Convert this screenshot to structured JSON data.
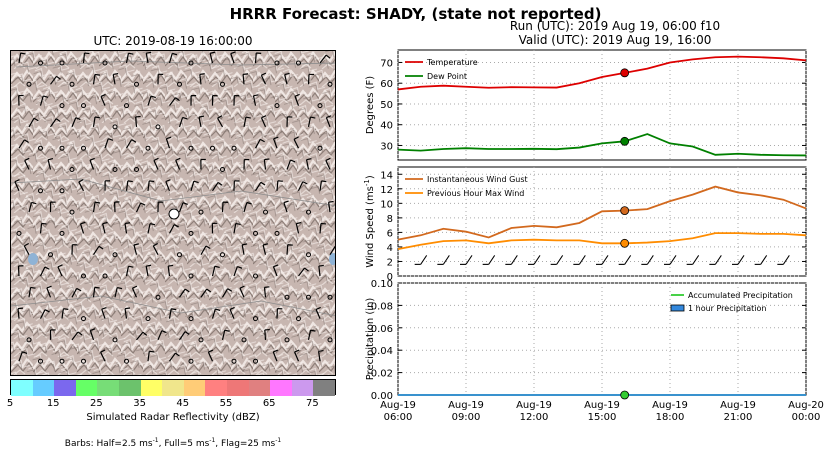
{
  "figure": {
    "suptitle": "HRRR Forecast: SHADY, (state not reported)",
    "run_line": "Run (UTC): 2019 Aug 19, 06:00 f10",
    "valid_line": "Valid (UTC): 2019 Aug 19, 16:00",
    "map_title": "UTC: 2019-08-19 16:00:00",
    "colorbar_label": "Simulated Radar Reflectivity (dBZ)",
    "colorbar_ticks": [
      "5",
      "15",
      "25",
      "35",
      "45",
      "55",
      "65",
      "75"
    ],
    "colorbar_colors": [
      "#7fffff",
      "#66ccff",
      "#7b68ee",
      "#66ff66",
      "#77dd77",
      "#6cc26c",
      "#ffff66",
      "#f0e68c",
      "#ffcc77",
      "#ff8080",
      "#ee7777",
      "#e08080",
      "#ff77ff",
      "#cc99ee",
      "#808080"
    ],
    "barbs_note": "Barbs: Half=2.5 ms",
    "barbs_note_mid": ", Full=5 ms",
    "barbs_note_end": ", Flag=25 ms",
    "barbs_sup": "-1"
  },
  "x_ticks": [
    {
      "l1": "Aug-19",
      "l2": "06:00",
      "h": 0
    },
    {
      "l1": "Aug-19",
      "l2": "09:00",
      "h": 3
    },
    {
      "l1": "Aug-19",
      "l2": "12:00",
      "h": 6
    },
    {
      "l1": "Aug-19",
      "l2": "15:00",
      "h": 9
    },
    {
      "l1": "Aug-19",
      "l2": "18:00",
      "h": 12
    },
    {
      "l1": "Aug-19",
      "l2": "21:00",
      "h": 15
    },
    {
      "l1": "Aug-20",
      "l2": "00:00",
      "h": 18
    }
  ],
  "chart_data": [
    {
      "type": "line",
      "ylabel": "Degrees (F)",
      "ylim": [
        23,
        76
      ],
      "yticks": [
        30,
        40,
        50,
        60,
        70
      ],
      "grid": true,
      "legend": "top-left",
      "series": [
        {
          "name": "Temperature",
          "color": "#dd0000",
          "x": [
            0,
            1,
            2,
            3,
            4,
            5,
            6,
            7,
            8,
            9,
            10,
            11,
            12,
            13,
            14,
            15,
            16,
            17,
            18
          ],
          "values": [
            57,
            58.3,
            58.8,
            58.3,
            57.8,
            58.1,
            58,
            57.9,
            60,
            63,
            65,
            67,
            70,
            71.5,
            72.5,
            72.8,
            72.5,
            72,
            71
          ]
        },
        {
          "name": "Dew Point",
          "color": "#008000",
          "x": [
            0,
            1,
            2,
            3,
            4,
            5,
            6,
            7,
            8,
            9,
            10,
            11,
            12,
            13,
            14,
            15,
            16,
            17,
            18
          ],
          "values": [
            28,
            27.5,
            28.3,
            28.7,
            28.3,
            28.3,
            28.4,
            28.2,
            29,
            31,
            32,
            35.5,
            31,
            29.5,
            25.5,
            26,
            25.5,
            25.3,
            25.2
          ]
        }
      ],
      "markers": [
        {
          "x": 10,
          "y": 65,
          "color": "#dd0000"
        },
        {
          "x": 10,
          "y": 32,
          "color": "#008000"
        }
      ]
    },
    {
      "type": "line",
      "ylabel": "Wind Speed (ms",
      "ylabel_sup": "-1",
      "ylabel_end": ")",
      "ylim": [
        0,
        15
      ],
      "yticks": [
        0,
        2,
        4,
        6,
        8,
        10,
        12,
        14
      ],
      "grid": true,
      "legend": "top-left",
      "series": [
        {
          "name": "Instantaneous Wind Gust",
          "color": "#d2691e",
          "x": [
            0,
            1,
            2,
            3,
            4,
            5,
            6,
            7,
            8,
            9,
            10,
            11,
            12,
            13,
            14,
            15,
            16,
            17,
            18
          ],
          "values": [
            5,
            5.6,
            6.5,
            6.1,
            5.3,
            6.6,
            6.9,
            6.7,
            7.3,
            8.9,
            9,
            9.2,
            10.3,
            11.2,
            12.3,
            11.5,
            11.1,
            10.5,
            9.3
          ]
        },
        {
          "name": "Previous Hour Max Wind",
          "color": "#ff8c00",
          "x": [
            0,
            1,
            2,
            3,
            4,
            5,
            6,
            7,
            8,
            9,
            10,
            11,
            12,
            13,
            14,
            15,
            16,
            17,
            18
          ],
          "values": [
            3.7,
            4.3,
            4.8,
            4.9,
            4.5,
            4.9,
            5,
            4.9,
            4.9,
            4.5,
            4.5,
            4.6,
            4.8,
            5.2,
            5.9,
            5.9,
            5.8,
            5.8,
            5.6
          ]
        }
      ],
      "markers": [
        {
          "x": 10,
          "y": 9,
          "color": "#d2691e"
        },
        {
          "x": 10,
          "y": 4.5,
          "color": "#ff8c00"
        }
      ]
    },
    {
      "type": "bar",
      "ylabel": "Precipitation (in)",
      "ylim": [
        0,
        0.1
      ],
      "yticks": [
        "0.00",
        "0.02",
        "0.04",
        "0.06",
        "0.08",
        "0.10"
      ],
      "grid": true,
      "legend": "top-right",
      "series": [
        {
          "name": "Accumulated Precipitation",
          "color": "#33cc33",
          "x": [
            0,
            1,
            2,
            3,
            4,
            5,
            6,
            7,
            8,
            9,
            10,
            11,
            12,
            13,
            14,
            15,
            16,
            17,
            18
          ],
          "values": [
            0,
            0,
            0,
            0,
            0,
            0,
            0,
            0,
            0,
            0,
            0,
            0,
            0,
            0,
            0,
            0,
            0,
            0,
            0
          ]
        },
        {
          "name": "1 hour Precipitation",
          "color": "#3388dd",
          "x": [
            0,
            1,
            2,
            3,
            4,
            5,
            6,
            7,
            8,
            9,
            10,
            11,
            12,
            13,
            14,
            15,
            16,
            17,
            18
          ],
          "values": [
            0,
            0,
            0,
            0,
            0,
            0,
            0,
            0,
            0,
            0,
            0,
            0,
            0,
            0,
            0,
            0,
            0,
            0,
            0
          ]
        }
      ],
      "markers": [
        {
          "x": 10,
          "y": 0,
          "color": "#33cc33"
        }
      ]
    }
  ]
}
